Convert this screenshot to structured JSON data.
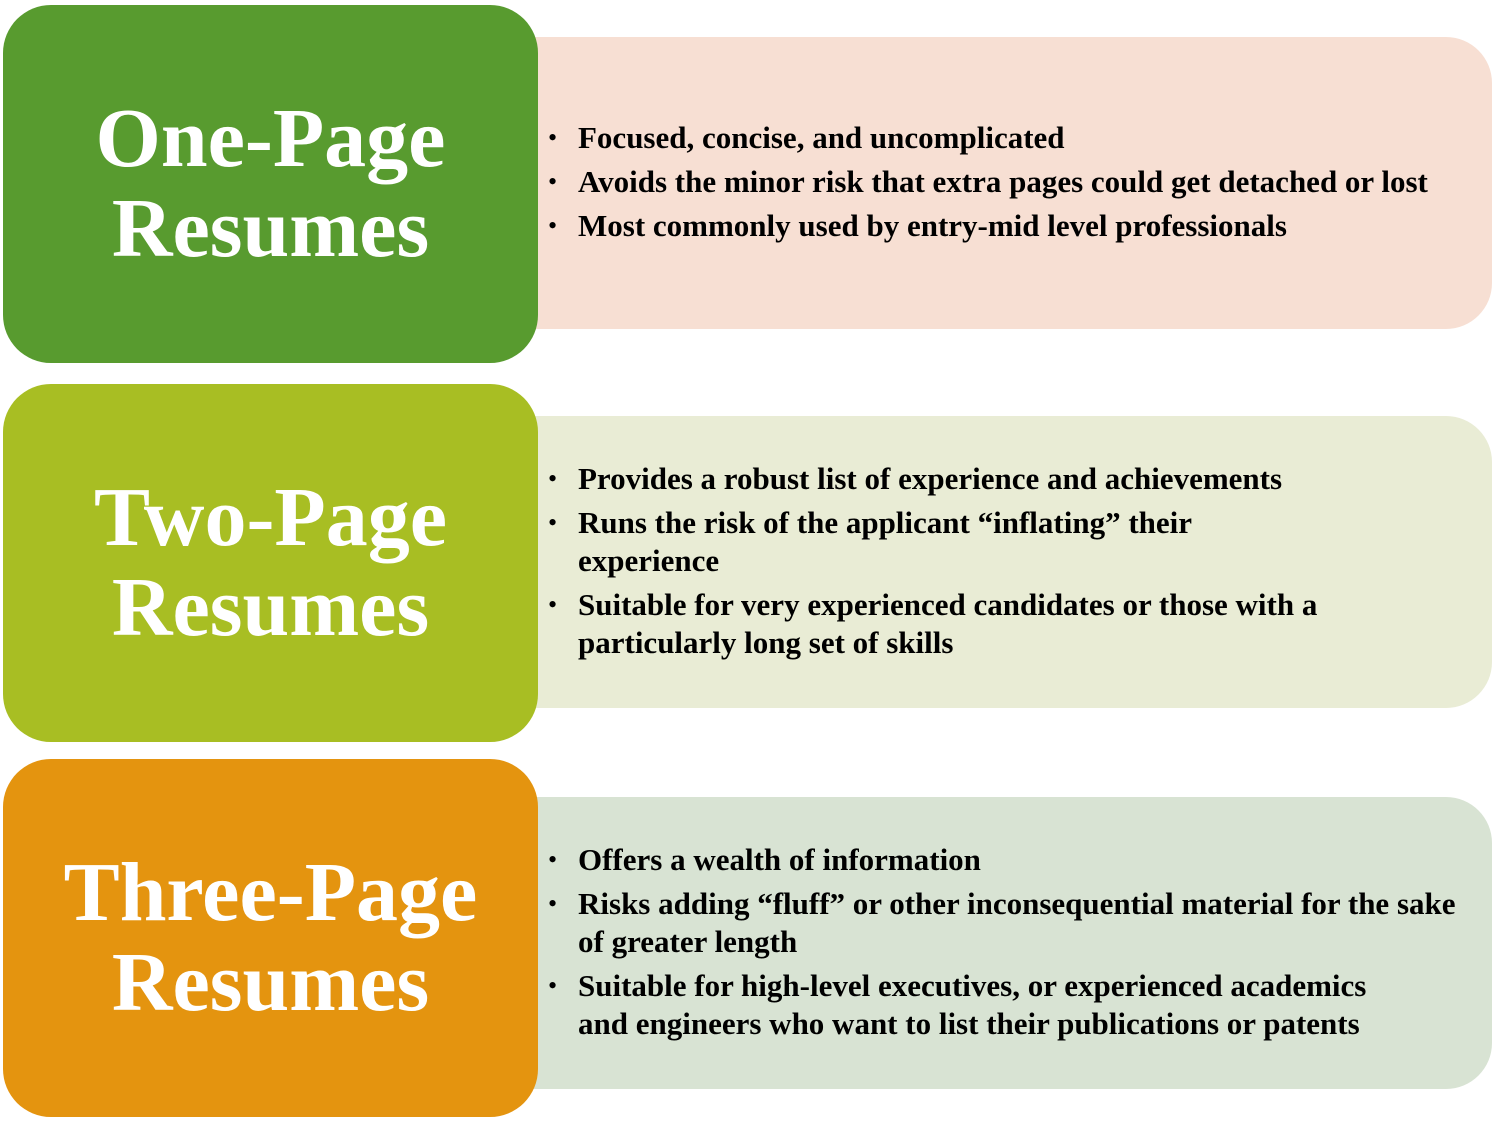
{
  "rows": [
    {
      "title_line1": "One-Page",
      "title_line2": "Resumes",
      "label_color": "#589b2f",
      "panel_color": "#f7dfd3",
      "bullets": [
        "Focused, concise, and uncomplicated",
        "Avoids the minor risk that extra pages could get detached or lost",
        "Most commonly used by entry-mid level professionals"
      ]
    },
    {
      "title_line1": "Two-Page",
      "title_line2": "Resumes",
      "label_color": "#a8be23",
      "panel_color": "#e9ecd5",
      "bullets": [
        "Provides a robust list of experience and achievements",
        "Runs the risk of the applicant “inflating” their experience",
        "Suitable for very experienced candidates or those with a particularly long set of skills"
      ]
    },
    {
      "title_line1": "Three-Page",
      "title_line2": "Resumes",
      "label_color": "#e4940f",
      "panel_color": "#d8e3d3",
      "bullets": [
        "Offers a wealth of information",
        "Risks adding “fluff” or other inconsequential material for the sake of greater length",
        "Suitable for high-level executives, or experienced academics and engineers who want to list their publications or patents"
      ]
    }
  ]
}
